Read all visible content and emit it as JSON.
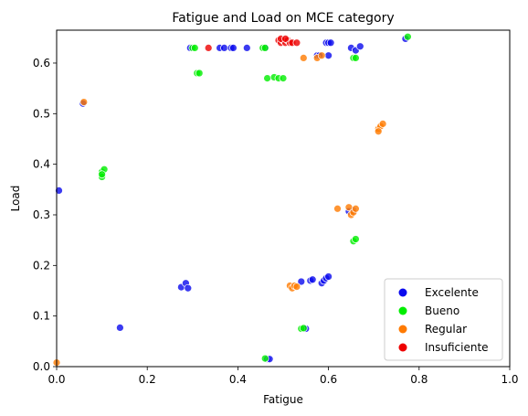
{
  "chart_data": {
    "type": "scatter",
    "title": "Fatigue and Load on MCE category",
    "xlabel": "Fatigue",
    "ylabel": "Load",
    "xlim": [
      0,
      1.0
    ],
    "ylim": [
      0,
      0.665
    ],
    "xticks": [
      {
        "value": 0.0,
        "label": "0.0"
      },
      {
        "value": 0.2,
        "label": "0.2"
      },
      {
        "value": 0.4,
        "label": "0.4"
      },
      {
        "value": 0.6,
        "label": "0.6"
      },
      {
        "value": 0.8,
        "label": "0.8"
      },
      {
        "value": 1.0,
        "label": "1.0"
      }
    ],
    "yticks": [
      {
        "value": 0.0,
        "label": "0.0"
      },
      {
        "value": 0.1,
        "label": "0.1"
      },
      {
        "value": 0.2,
        "label": "0.2"
      },
      {
        "value": 0.3,
        "label": "0.3"
      },
      {
        "value": 0.4,
        "label": "0.4"
      },
      {
        "value": 0.5,
        "label": "0.5"
      },
      {
        "value": 0.6,
        "label": "0.6"
      }
    ],
    "grid": false,
    "legend_position": "lower-right",
    "series": [
      {
        "name": "Excelente",
        "color": "#0a0aee",
        "points": [
          [
            0.005,
            0.348
          ],
          [
            0.058,
            0.52
          ],
          [
            0.14,
            0.077
          ],
          [
            0.275,
            0.157
          ],
          [
            0.285,
            0.165
          ],
          [
            0.29,
            0.155
          ],
          [
            0.295,
            0.63
          ],
          [
            0.36,
            0.63
          ],
          [
            0.37,
            0.63
          ],
          [
            0.385,
            0.63
          ],
          [
            0.39,
            0.63
          ],
          [
            0.42,
            0.63
          ],
          [
            0.46,
            0.63
          ],
          [
            0.465,
            0.015
          ],
          [
            0.47,
            0.015
          ],
          [
            0.54,
            0.168
          ],
          [
            0.545,
            0.075
          ],
          [
            0.55,
            0.075
          ],
          [
            0.56,
            0.17
          ],
          [
            0.565,
            0.172
          ],
          [
            0.575,
            0.615
          ],
          [
            0.58,
            0.615
          ],
          [
            0.585,
            0.165
          ],
          [
            0.59,
            0.17
          ],
          [
            0.595,
            0.175
          ],
          [
            0.6,
            0.178
          ],
          [
            0.595,
            0.64
          ],
          [
            0.6,
            0.64
          ],
          [
            0.605,
            0.64
          ],
          [
            0.6,
            0.615
          ],
          [
            0.645,
            0.307
          ],
          [
            0.655,
            0.308
          ],
          [
            0.65,
            0.63
          ],
          [
            0.66,
            0.625
          ],
          [
            0.67,
            0.633
          ],
          [
            0.77,
            0.648
          ]
        ]
      },
      {
        "name": "Bueno",
        "color": "#00ee00",
        "points": [
          [
            0.1,
            0.385
          ],
          [
            0.1,
            0.375
          ],
          [
            0.105,
            0.39
          ],
          [
            0.1,
            0.38
          ],
          [
            0.3,
            0.63
          ],
          [
            0.305,
            0.63
          ],
          [
            0.31,
            0.58
          ],
          [
            0.315,
            0.58
          ],
          [
            0.455,
            0.63
          ],
          [
            0.46,
            0.63
          ],
          [
            0.465,
            0.57
          ],
          [
            0.48,
            0.572
          ],
          [
            0.49,
            0.57
          ],
          [
            0.5,
            0.57
          ],
          [
            0.46,
            0.016
          ],
          [
            0.54,
            0.075
          ],
          [
            0.545,
            0.076
          ],
          [
            0.655,
            0.61
          ],
          [
            0.66,
            0.61
          ],
          [
            0.655,
            0.248
          ],
          [
            0.66,
            0.252
          ],
          [
            0.775,
            0.652
          ]
        ]
      },
      {
        "name": "Regular",
        "color": "#ff7a00",
        "points": [
          [
            0.0,
            0.008
          ],
          [
            0.06,
            0.523
          ],
          [
            0.515,
            0.16
          ],
          [
            0.52,
            0.155
          ],
          [
            0.525,
            0.16
          ],
          [
            0.53,
            0.158
          ],
          [
            0.545,
            0.61
          ],
          [
            0.575,
            0.61
          ],
          [
            0.585,
            0.615
          ],
          [
            0.62,
            0.312
          ],
          [
            0.645,
            0.315
          ],
          [
            0.65,
            0.3
          ],
          [
            0.655,
            0.305
          ],
          [
            0.66,
            0.312
          ],
          [
            0.71,
            0.47
          ],
          [
            0.715,
            0.475
          ],
          [
            0.72,
            0.48
          ],
          [
            0.71,
            0.465
          ]
        ]
      },
      {
        "name": "Insuficiente",
        "color": "#ee0000",
        "points": [
          [
            0.335,
            0.63
          ],
          [
            0.49,
            0.645
          ],
          [
            0.495,
            0.64
          ],
          [
            0.5,
            0.645
          ],
          [
            0.505,
            0.64
          ],
          [
            0.51,
            0.645
          ],
          [
            0.515,
            0.64
          ],
          [
            0.52,
            0.64
          ],
          [
            0.53,
            0.64
          ],
          [
            0.495,
            0.648
          ],
          [
            0.505,
            0.648
          ]
        ]
      }
    ]
  }
}
